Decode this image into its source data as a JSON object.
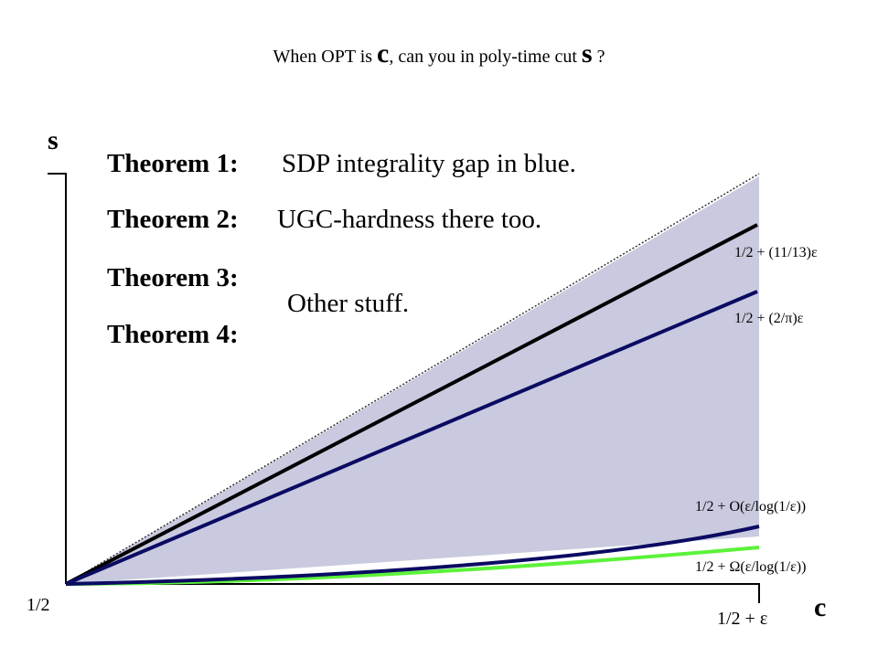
{
  "title": {
    "prefix": "When OPT is",
    "c": "c",
    "middle": ", can you in poly-time cut",
    "s": "s",
    "suffix": "?"
  },
  "axes": {
    "y_label": "s",
    "x_label": "c",
    "origin_label": "1/2",
    "x_end_label": "1/2 + ε"
  },
  "theorems": [
    {
      "label": "Theorem 1:",
      "text": "SDP integrality gap in blue."
    },
    {
      "label": "Theorem 2:",
      "text": "UGC-hardness there too."
    },
    {
      "label": "Theorem 3:",
      "text": ""
    },
    {
      "label": "Theorem 4:",
      "text": ""
    }
  ],
  "other_text": "Other stuff.",
  "curve_labels": {
    "black": "1/2 + (11/13)ε",
    "navy_top": "1/2 + (2/π)ε",
    "navy_bottom": "1/2 + O(ε/log(1/ε))",
    "green": "1/2 + Ω(ε/log(1/ε))"
  },
  "colors": {
    "shade": "#c9cadf",
    "black_line": "#000000",
    "navy_line": "#0b0b63",
    "green_line": "#5cf23a"
  }
}
